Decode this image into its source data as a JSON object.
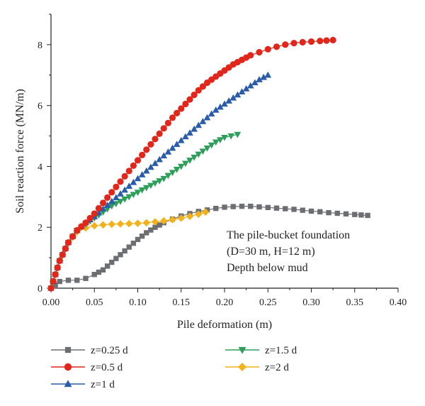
{
  "chart_data": {
    "type": "scatter",
    "xlabel": "Pile deformation (m)",
    "ylabel": "Soil reaction force (MN/m)",
    "xlim": [
      0.0,
      0.4
    ],
    "ylim": [
      0,
      9
    ],
    "x_ticks": [
      "0.00",
      "0.05",
      "0.10",
      "0.15",
      "0.20",
      "0.25",
      "0.30",
      "0.35",
      "0.40"
    ],
    "y_ticks": [
      "0",
      "2",
      "4",
      "6",
      "8"
    ],
    "grid": false,
    "legend_position": "bottom",
    "annotation": [
      "The pile-bucket foundation",
      "(D=30 m, H=12 m)",
      "Depth below mud"
    ],
    "series": [
      {
        "name": "z=0.25 d",
        "color": "#6d6e71",
        "marker": "square",
        "x": [
          0.0,
          0.01,
          0.02,
          0.03,
          0.04,
          0.05,
          0.06,
          0.07,
          0.08,
          0.09,
          0.1,
          0.11,
          0.12,
          0.13,
          0.14,
          0.15,
          0.16,
          0.17,
          0.18,
          0.19,
          0.2,
          0.21,
          0.22,
          0.23,
          0.24,
          0.25,
          0.26,
          0.27,
          0.28,
          0.29,
          0.3,
          0.31,
          0.32,
          0.33,
          0.34,
          0.35,
          0.365
        ],
        "y": [
          0.0,
          0.22,
          0.26,
          0.26,
          0.32,
          0.45,
          0.6,
          0.85,
          1.1,
          1.35,
          1.6,
          1.82,
          2.0,
          2.15,
          2.27,
          2.37,
          2.45,
          2.52,
          2.57,
          2.62,
          2.66,
          2.68,
          2.69,
          2.69,
          2.67,
          2.65,
          2.63,
          2.61,
          2.59,
          2.56,
          2.53,
          2.51,
          2.48,
          2.46,
          2.44,
          2.42,
          2.39
        ]
      },
      {
        "name": "z=0.5 d",
        "color": "#e1261c",
        "marker": "circle",
        "x": [
          0.0,
          0.01,
          0.02,
          0.03,
          0.04,
          0.05,
          0.06,
          0.07,
          0.08,
          0.09,
          0.1,
          0.11,
          0.12,
          0.13,
          0.14,
          0.15,
          0.16,
          0.17,
          0.18,
          0.19,
          0.2,
          0.21,
          0.22,
          0.23,
          0.24,
          0.25,
          0.26,
          0.27,
          0.28,
          0.29,
          0.3,
          0.31,
          0.325
        ],
        "y": [
          0.0,
          0.9,
          1.5,
          1.9,
          2.15,
          2.45,
          2.8,
          3.15,
          3.5,
          3.85,
          4.2,
          4.55,
          4.9,
          5.25,
          5.6,
          5.9,
          6.2,
          6.5,
          6.75,
          6.95,
          7.15,
          7.35,
          7.5,
          7.65,
          7.75,
          7.85,
          7.93,
          8.0,
          8.05,
          8.08,
          8.1,
          8.12,
          8.15
        ]
      },
      {
        "name": "z=1 d",
        "color": "#2a5caa",
        "marker": "triangle-up",
        "x": [
          0.0,
          0.01,
          0.02,
          0.03,
          0.04,
          0.05,
          0.06,
          0.07,
          0.08,
          0.09,
          0.1,
          0.11,
          0.12,
          0.13,
          0.14,
          0.15,
          0.16,
          0.17,
          0.18,
          0.19,
          0.2,
          0.21,
          0.22,
          0.23,
          0.24,
          0.25
        ],
        "y": [
          0.0,
          0.9,
          1.5,
          1.9,
          2.15,
          2.35,
          2.6,
          2.85,
          3.1,
          3.35,
          3.6,
          3.85,
          4.1,
          4.35,
          4.6,
          4.85,
          5.1,
          5.35,
          5.6,
          5.85,
          6.05,
          6.25,
          6.45,
          6.65,
          6.85,
          7.0
        ]
      },
      {
        "name": "z=1.5 d",
        "color": "#2e9f5a",
        "marker": "triangle-down",
        "x": [
          0.0,
          0.01,
          0.02,
          0.03,
          0.04,
          0.05,
          0.06,
          0.07,
          0.08,
          0.09,
          0.1,
          0.11,
          0.12,
          0.13,
          0.14,
          0.15,
          0.16,
          0.17,
          0.18,
          0.19,
          0.2,
          0.215
        ],
        "y": [
          0.0,
          0.9,
          1.5,
          1.9,
          2.1,
          2.3,
          2.5,
          2.7,
          2.85,
          3.0,
          3.15,
          3.3,
          3.45,
          3.6,
          3.8,
          4.0,
          4.2,
          4.4,
          4.6,
          4.8,
          4.95,
          5.05
        ]
      },
      {
        "name": "z=2 d",
        "color": "#f2b21b",
        "marker": "diamond",
        "x": [
          0.0,
          0.01,
          0.02,
          0.03,
          0.04,
          0.05,
          0.06,
          0.07,
          0.08,
          0.09,
          0.1,
          0.11,
          0.12,
          0.13,
          0.14,
          0.15,
          0.16,
          0.17,
          0.178
        ],
        "y": [
          0.0,
          0.9,
          1.5,
          1.85,
          1.98,
          2.05,
          2.08,
          2.1,
          2.11,
          2.12,
          2.13,
          2.15,
          2.18,
          2.21,
          2.25,
          2.3,
          2.36,
          2.43,
          2.5
        ]
      }
    ]
  }
}
